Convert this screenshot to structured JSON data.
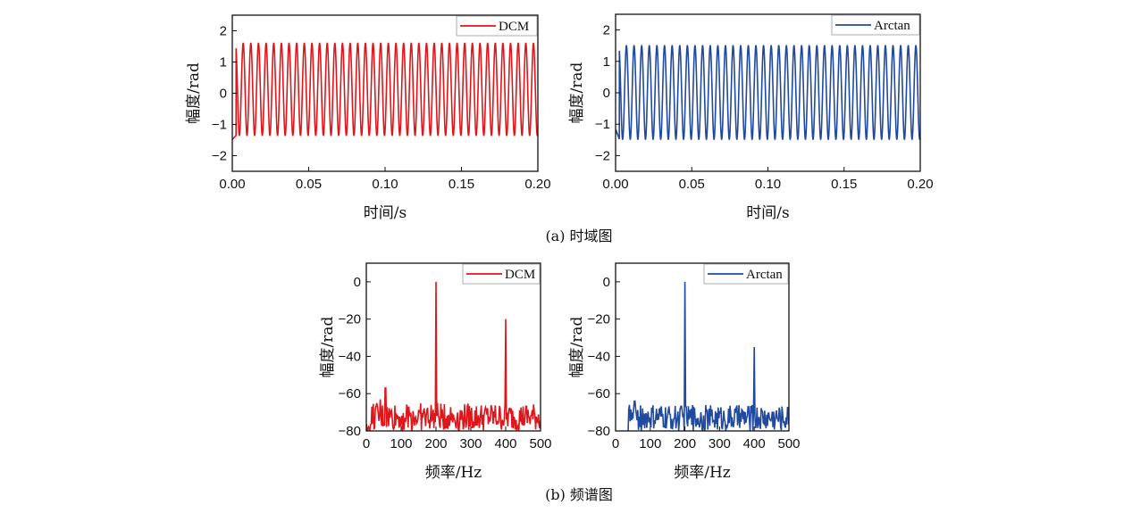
{
  "figure": {
    "caption_a": "(a) 时域图",
    "caption_b": "(b) 频谱图"
  },
  "colors": {
    "dcm": "#e0161b",
    "arctan": "#1f4aa0",
    "axis": "#111111"
  },
  "chart_data": [
    {
      "id": "time-dcm",
      "type": "line",
      "legend": "DCM",
      "legend_position": "top-right",
      "xlabel": "时间/s",
      "ylabel": "幅度/rad",
      "xlim": [
        0,
        0.2
      ],
      "ylim": [
        -2.5,
        2.5
      ],
      "xticks": [
        "0.00",
        "0.05",
        "0.10",
        "0.15",
        "0.20"
      ],
      "xtick_values": [
        0,
        0.05,
        0.1,
        0.15,
        0.2
      ],
      "yticks": [
        "−2",
        "−1",
        "0",
        "1",
        "2"
      ],
      "ytick_values": [
        -2,
        -1,
        0,
        1,
        2
      ],
      "signal": {
        "frequency_hz": 200,
        "peak": 1.6,
        "trough": -1.35,
        "initial_trough": -1.48
      },
      "grid": false
    },
    {
      "id": "time-arctan",
      "type": "line",
      "legend": "Arctan",
      "legend_position": "top-right",
      "xlabel": "时间/s",
      "ylabel": "幅度/rad",
      "xlim": [
        0,
        0.2
      ],
      "ylim": [
        -2.5,
        2.5
      ],
      "xticks": [
        "0.00",
        "0.05",
        "0.10",
        "0.15",
        "0.20"
      ],
      "xtick_values": [
        0,
        0.05,
        0.1,
        0.15,
        0.2
      ],
      "yticks": [
        "−2",
        "−1",
        "0",
        "1",
        "2"
      ],
      "ytick_values": [
        -2,
        -1,
        0,
        1,
        2
      ],
      "signal": {
        "frequency_hz": 200,
        "peak": 1.5,
        "trough": -1.48,
        "initial_trough": -1.15
      },
      "grid": false
    },
    {
      "id": "spectrum-dcm",
      "type": "line",
      "legend": "DCM",
      "legend_position": "top-right",
      "xlabel": "频率/Hz",
      "ylabel": "幅度/rad",
      "xlim": [
        0,
        500
      ],
      "ylim": [
        -80,
        10
      ],
      "xticks": [
        "0",
        "100",
        "200",
        "300",
        "400",
        "500"
      ],
      "xtick_values": [
        0,
        100,
        200,
        300,
        400,
        500
      ],
      "yticks": [
        "−80",
        "−60",
        "−40",
        "−20",
        "0"
      ],
      "ytick_values": [
        -80,
        -60,
        -40,
        -20,
        0
      ],
      "peaks": [
        {
          "x": 200,
          "y": 0
        },
        {
          "x": 400,
          "y": -20
        },
        {
          "x": 55,
          "y": -57
        },
        {
          "x": 40,
          "y": -63
        }
      ],
      "noise_floor": {
        "min": -80,
        "max": -65
      },
      "grid": false
    },
    {
      "id": "spectrum-arctan",
      "type": "line",
      "legend": "Arctan",
      "legend_position": "top-right",
      "xlabel": "频率/Hz",
      "ylabel": "幅度/rad",
      "xlim": [
        0,
        500
      ],
      "ylim": [
        -80,
        10
      ],
      "xticks": [
        "0",
        "100",
        "200",
        "300",
        "400",
        "500"
      ],
      "xtick_values": [
        0,
        100,
        200,
        300,
        400,
        500
      ],
      "yticks": [
        "−80",
        "−60",
        "−40",
        "−20",
        "0"
      ],
      "ytick_values": [
        -80,
        -60,
        -40,
        -20,
        0
      ],
      "peaks": [
        {
          "x": 200,
          "y": 0
        },
        {
          "x": 400,
          "y": -35
        },
        {
          "x": 55,
          "y": -64
        },
        {
          "x": 40,
          "y": -66
        }
      ],
      "noise_floor": {
        "min": -80,
        "max": -66
      },
      "grid": false
    }
  ]
}
